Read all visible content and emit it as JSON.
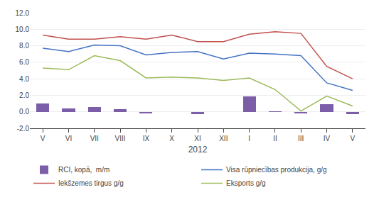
{
  "chart_data": {
    "type": "bar",
    "categories": [
      "V",
      "VI",
      "VII",
      "VIII",
      "IX",
      "X",
      "XI",
      "XII",
      "I",
      "II",
      "III",
      "IV",
      "V"
    ],
    "x_label": "2012",
    "series": [
      {
        "name": "RCI, kopā,  m/m",
        "type": "bar",
        "color": "#7B5EA7",
        "values": [
          1.0,
          0.4,
          0.55,
          0.3,
          -0.2,
          0.0,
          -0.3,
          0.0,
          1.85,
          0.1,
          -0.2,
          0.9,
          -0.3
        ]
      },
      {
        "name": "Visa rūpniecības produkcija, g/g",
        "type": "line",
        "color": "#4472C4",
        "values": [
          7.7,
          7.3,
          8.1,
          8.0,
          6.9,
          7.2,
          7.3,
          6.4,
          7.1,
          7.0,
          6.8,
          3.5,
          2.6
        ]
      },
      {
        "name": "Iekšzemes tirgus g/g",
        "type": "line",
        "color": "#C0504D",
        "values": [
          9.3,
          8.8,
          8.8,
          9.1,
          8.8,
          9.3,
          8.5,
          8.5,
          9.4,
          9.7,
          9.5,
          5.5,
          4.0
        ]
      },
      {
        "name": "Eksports g/g",
        "type": "line",
        "color": "#9BBB59",
        "values": [
          5.3,
          5.1,
          6.8,
          6.2,
          4.1,
          4.2,
          4.1,
          3.8,
          4.1,
          2.7,
          0.1,
          1.9,
          0.7
        ]
      }
    ],
    "ylim": [
      -2.0,
      12.0
    ],
    "yticks": [
      {
        "value": -2.0,
        "label": "-2.0"
      },
      {
        "value": 0.0,
        "label": "0.0"
      },
      {
        "value": 2.0,
        "label": "2.0"
      },
      {
        "value": 4.0,
        "label": "4.0"
      },
      {
        "value": 6.0,
        "label": "6.0"
      },
      {
        "value": 8.0,
        "label": "8.0"
      },
      {
        "value": 10.0,
        "label": "10.0"
      },
      {
        "value": 12.0,
        "label": "12.0"
      }
    ],
    "grid": true,
    "legend": "bottom"
  }
}
